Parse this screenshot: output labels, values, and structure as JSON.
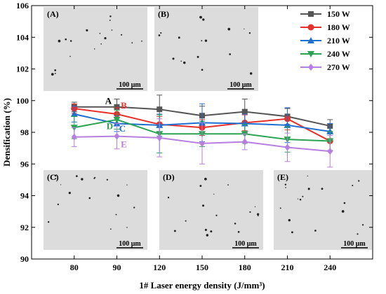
{
  "chart_data": {
    "type": "line",
    "xlabel": "1# Laser energy density (J/mm³)",
    "ylabel": "Densification (%)",
    "categories": [
      "80",
      "90",
      "120",
      "150",
      "180",
      "210",
      "240"
    ],
    "ylim": [
      90,
      106
    ],
    "yticks": [
      "90",
      "92",
      "94",
      "96",
      "98",
      "100",
      "102",
      "104",
      "106"
    ],
    "series": [
      {
        "name": "150 W",
        "color": "#555555",
        "marker": "square",
        "values": [
          99.6,
          99.6,
          99.45,
          99.05,
          99.3,
          99.0,
          98.4
        ],
        "errors": [
          0.3,
          0.5,
          0.9,
          0.6,
          0.8,
          0.5,
          0.4
        ]
      },
      {
        "name": "180 W",
        "color": "#e8302a",
        "marker": "circle",
        "values": [
          99.5,
          99.15,
          98.5,
          98.3,
          98.6,
          98.85,
          97.45
        ],
        "errors": [
          0.3,
          0.4,
          0.5,
          0.5,
          0.5,
          0.7,
          0.6
        ]
      },
      {
        "name": "210 W",
        "color": "#1f6fd1",
        "marker": "triangle-up",
        "values": [
          99.15,
          98.55,
          98.45,
          98.6,
          98.55,
          98.45,
          98.05
        ],
        "errors": [
          0.5,
          0.5,
          0.7,
          1.2,
          0.6,
          1.1,
          0.5
        ]
      },
      {
        "name": "240 W",
        "color": "#2aa451",
        "marker": "triangle-down",
        "values": [
          98.3,
          98.8,
          97.9,
          97.9,
          97.9,
          97.55,
          97.45
        ],
        "errors": [
          0.7,
          0.6,
          1.2,
          0.8,
          0.6,
          0.8,
          0.6
        ]
      },
      {
        "name": "270 W",
        "color": "#b77fe0",
        "marker": "diamond",
        "values": [
          97.7,
          97.75,
          97.65,
          97.3,
          97.4,
          97.05,
          96.8
        ],
        "errors": [
          0.6,
          0.8,
          1.2,
          1.3,
          0.5,
          0.9,
          1.0
        ]
      }
    ],
    "annotations": [
      {
        "text": "A",
        "color": "#000000"
      },
      {
        "text": "B",
        "color": "#e8302a"
      },
      {
        "text": "C",
        "color": "#1f6fd1"
      },
      {
        "text": "D",
        "color": "#2aa451"
      },
      {
        "text": "E",
        "color": "#b77fe0"
      }
    ],
    "legend_position": "top-right",
    "inset_images": [
      {
        "tag": "(A)",
        "scale_bar": "100 μm"
      },
      {
        "tag": "(B)",
        "scale_bar": "100 μm"
      },
      {
        "tag": "(C)",
        "scale_bar": "100 μm"
      },
      {
        "tag": "(D)",
        "scale_bar": "100 μm"
      },
      {
        "tag": "(E)",
        "scale_bar": "100 μm"
      }
    ]
  }
}
